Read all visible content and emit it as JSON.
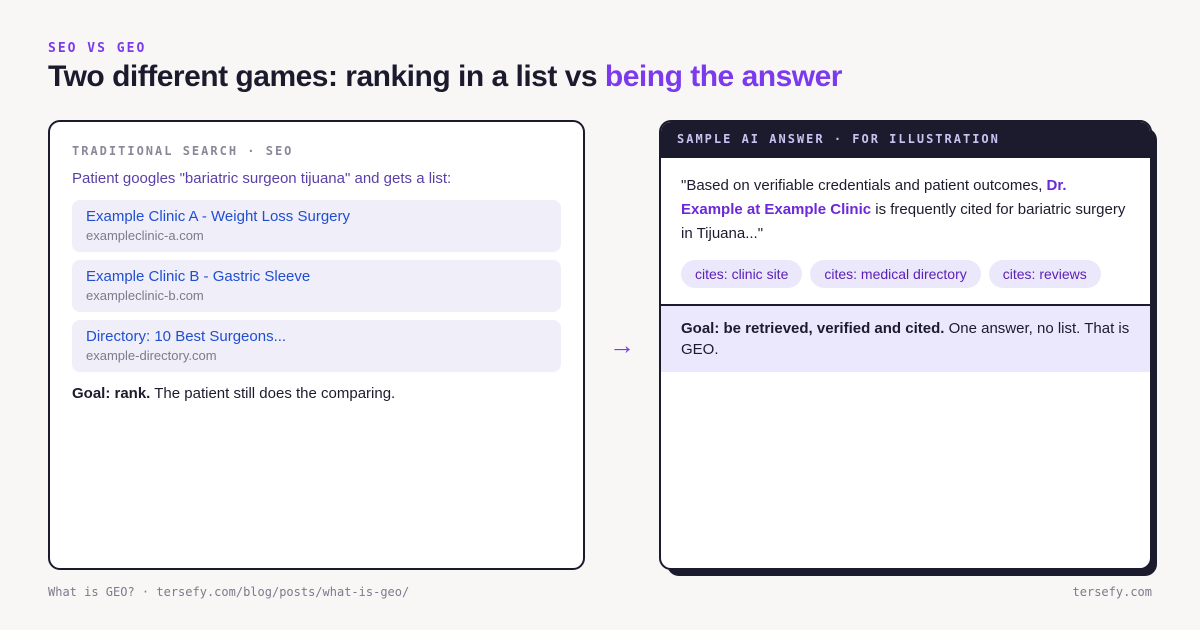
{
  "eyebrow": "SEO VS GEO",
  "headline": {
    "main": "Two different games: ranking in a list vs ",
    "accent": "being the answer"
  },
  "left_card": {
    "label": "TRADITIONAL SEARCH · SEO",
    "intro": "Patient googles \"bariatric surgeon tijuana\" and gets a list:",
    "results": [
      {
        "title": "Example Clinic A - Weight Loss Surgery",
        "url": "exampleclinic-a.com"
      },
      {
        "title": "Example Clinic B - Gastric Sleeve",
        "url": "exampleclinic-b.com"
      },
      {
        "title": "Directory: 10 Best Surgeons...",
        "url": "example-directory.com"
      }
    ],
    "goal_bold": "Goal: rank.",
    "goal_text": " The patient still does the comparing."
  },
  "arrow": "→",
  "right_card": {
    "label": "SAMPLE AI ANSWER · FOR ILLUSTRATION",
    "answer_pre": "\"Based on verifiable credentials and patient outcomes, ",
    "answer_highlight": "Dr. Example at Example Clinic",
    "answer_post": " is frequently cited for bariatric surgery in Tijuana...\"",
    "chips": [
      "cites: clinic site",
      "cites: medical directory",
      "cites: reviews"
    ],
    "goal_bold": "Goal: be retrieved, verified and cited.",
    "goal_text": " One answer, no list. That is GEO."
  },
  "footer": {
    "left": "What is GEO? · tersefy.com/blog/posts/what-is-geo/",
    "right": "tersefy.com"
  },
  "colors": {
    "accent": "#7c3aed",
    "dark": "#1c1b2e",
    "link": "#1f4fd1",
    "background": "#f8f7f5"
  }
}
